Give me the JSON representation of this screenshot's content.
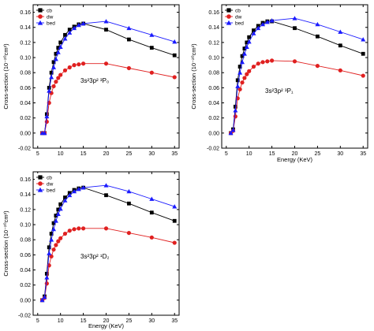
{
  "chart_data": [
    {
      "type": "line",
      "panel": "top-left",
      "annotation": "3s²3p² ³P₀",
      "xlabel": "",
      "ylabel": "Cross-section (10⁻²⁰cm²)",
      "xlim": [
        4,
        36
      ],
      "ylim": [
        -0.02,
        0.17
      ],
      "xticks": [
        "5",
        "10",
        "15",
        "20",
        "25",
        "30",
        "35"
      ],
      "yticks": [
        "-0.02",
        "0.00",
        "0.02",
        "0.04",
        "0.06",
        "0.08",
        "0.10",
        "0.12",
        "0.14",
        "0.16"
      ],
      "legend_position": "top-left",
      "series": [
        {
          "name": "cb",
          "color": "#000000",
          "marker": "square",
          "x": [
            6,
            6.5,
            7,
            7.5,
            8,
            8.5,
            9,
            9.5,
            10,
            11,
            12,
            13,
            14,
            15,
            20,
            25,
            30,
            35
          ],
          "y": [
            0,
            0,
            0.025,
            0.06,
            0.08,
            0.094,
            0.105,
            0.113,
            0.12,
            0.13,
            0.137,
            0.141,
            0.144,
            0.145,
            0.137,
            0.124,
            0.113,
            0.103
          ]
        },
        {
          "name": "dw",
          "color": "#e02020",
          "marker": "circle",
          "x": [
            6,
            6.5,
            7,
            7.5,
            8,
            8.5,
            9,
            9.5,
            10,
            11,
            12,
            13,
            14,
            15,
            20,
            25,
            30,
            35
          ],
          "y": [
            0,
            0,
            0.015,
            0.04,
            0.053,
            0.062,
            0.068,
            0.073,
            0.077,
            0.083,
            0.087,
            0.09,
            0.091,
            0.092,
            0.092,
            0.086,
            0.08,
            0.074
          ]
        },
        {
          "name": "bed",
          "color": "#1a1aff",
          "marker": "triangle",
          "x": [
            6,
            6.5,
            7,
            7.5,
            8,
            8.5,
            9,
            9.5,
            10,
            11,
            12,
            13,
            14,
            15,
            20,
            25,
            30,
            35
          ],
          "y": [
            0,
            0,
            0.022,
            0.056,
            0.074,
            0.087,
            0.098,
            0.107,
            0.114,
            0.125,
            0.133,
            0.139,
            0.143,
            0.145,
            0.148,
            0.139,
            0.13,
            0.121
          ]
        }
      ]
    },
    {
      "type": "line",
      "panel": "top-right",
      "annotation": "3s²3p² ³P₁",
      "xlabel": "Energy (KeV)",
      "ylabel": "Cross-section (10⁻²⁰cm²)",
      "xlim": [
        4,
        36
      ],
      "ylim": [
        -0.02,
        0.17
      ],
      "xticks": [
        "5",
        "10",
        "15",
        "20",
        "25",
        "30",
        "35"
      ],
      "yticks": [
        "-0.02",
        "0.00",
        "0.02",
        "0.04",
        "0.06",
        "0.08",
        "0.10",
        "0.12",
        "0.14",
        "0.16"
      ],
      "legend_position": "top-left",
      "series": [
        {
          "name": "cb",
          "color": "#000000",
          "marker": "square",
          "x": [
            6,
            6.5,
            7,
            7.5,
            8,
            8.5,
            9,
            9.5,
            10,
            11,
            12,
            13,
            14,
            15,
            20,
            25,
            30,
            35
          ],
          "y": [
            0,
            0.005,
            0.035,
            0.07,
            0.088,
            0.102,
            0.112,
            0.12,
            0.127,
            0.136,
            0.142,
            0.146,
            0.148,
            0.148,
            0.139,
            0.128,
            0.116,
            0.105
          ]
        },
        {
          "name": "dw",
          "color": "#e02020",
          "marker": "circle",
          "x": [
            6,
            6.5,
            7,
            7.5,
            8,
            8.5,
            9,
            9.5,
            10,
            11,
            12,
            13,
            14,
            15,
            20,
            25,
            30,
            35
          ],
          "y": [
            0,
            0.003,
            0.022,
            0.046,
            0.058,
            0.067,
            0.073,
            0.078,
            0.082,
            0.088,
            0.092,
            0.094,
            0.095,
            0.096,
            0.095,
            0.089,
            0.083,
            0.076
          ]
        },
        {
          "name": "bed",
          "color": "#1a1aff",
          "marker": "triangle",
          "x": [
            6,
            6.5,
            7,
            7.5,
            8,
            8.5,
            9,
            9.5,
            10,
            11,
            12,
            13,
            14,
            15,
            20,
            25,
            30,
            35
          ],
          "y": [
            0,
            0.004,
            0.03,
            0.062,
            0.08,
            0.094,
            0.105,
            0.114,
            0.121,
            0.132,
            0.139,
            0.144,
            0.147,
            0.149,
            0.152,
            0.144,
            0.134,
            0.124
          ]
        }
      ]
    },
    {
      "type": "line",
      "panel": "bottom-left",
      "annotation": "3s²3p² ¹D₂",
      "xlabel": "Energy (KeV)",
      "ylabel": "Cross-section (10⁻²⁰cm²)",
      "xlim": [
        4,
        36
      ],
      "ylim": [
        -0.02,
        0.17
      ],
      "xticks": [
        "5",
        "10",
        "15",
        "20",
        "25",
        "30",
        "35"
      ],
      "yticks": [
        "-0.02",
        "0.00",
        "0.02",
        "0.04",
        "0.06",
        "0.08",
        "0.10",
        "0.12",
        "0.14",
        "0.16"
      ],
      "legend_position": "top-left",
      "series": [
        {
          "name": "cb",
          "color": "#000000",
          "marker": "square",
          "x": [
            6,
            6.5,
            7,
            7.5,
            8,
            8.5,
            9,
            9.5,
            10,
            11,
            12,
            13,
            14,
            15,
            20,
            25,
            30,
            35
          ],
          "y": [
            0,
            0.005,
            0.035,
            0.07,
            0.088,
            0.102,
            0.112,
            0.12,
            0.127,
            0.136,
            0.142,
            0.146,
            0.148,
            0.149,
            0.139,
            0.128,
            0.116,
            0.105
          ]
        },
        {
          "name": "dw",
          "color": "#e02020",
          "marker": "circle",
          "x": [
            6,
            6.5,
            7,
            7.5,
            8,
            8.5,
            9,
            9.5,
            10,
            11,
            12,
            13,
            14,
            15,
            20,
            25,
            30,
            35
          ],
          "y": [
            0,
            0.003,
            0.022,
            0.046,
            0.058,
            0.067,
            0.073,
            0.078,
            0.082,
            0.088,
            0.092,
            0.094,
            0.095,
            0.095,
            0.095,
            0.089,
            0.083,
            0.076
          ]
        },
        {
          "name": "bed",
          "color": "#1a1aff",
          "marker": "triangle",
          "x": [
            6,
            6.5,
            7,
            7.5,
            8,
            8.5,
            9,
            9.5,
            10,
            11,
            12,
            13,
            14,
            15,
            20,
            25,
            30,
            35
          ],
          "y": [
            0,
            0.004,
            0.03,
            0.062,
            0.08,
            0.094,
            0.105,
            0.114,
            0.121,
            0.132,
            0.139,
            0.144,
            0.147,
            0.149,
            0.152,
            0.144,
            0.134,
            0.124
          ]
        }
      ]
    }
  ]
}
